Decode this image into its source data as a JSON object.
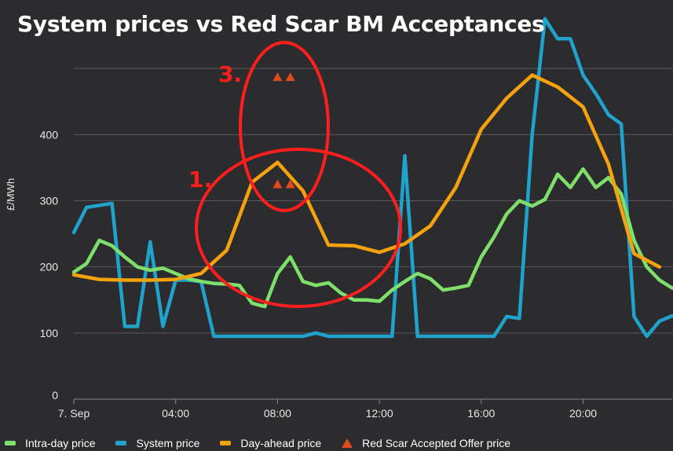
{
  "title": "System prices vs Red Scar BM Acceptances",
  "chart_data": {
    "type": "line",
    "title": "System prices vs Red Scar BM Acceptances",
    "ylabel": "£/MWh",
    "xlabel": "",
    "ylim": [
      0,
      500
    ],
    "y_ticks": [
      0,
      100,
      200,
      300,
      400
    ],
    "x_range": [
      0,
      23.5
    ],
    "x_ticks": [
      {
        "x": 0,
        "label": "7. Sep"
      },
      {
        "x": 4,
        "label": "04:00"
      },
      {
        "x": 8,
        "label": "08:00"
      },
      {
        "x": 12,
        "label": "12:00"
      },
      {
        "x": 16,
        "label": "16:00"
      },
      {
        "x": 20,
        "label": "20:00"
      }
    ],
    "series": [
      {
        "name": "Intra-day price",
        "color": "#7ee06a",
        "points": [
          [
            0,
            192
          ],
          [
            0.5,
            205
          ],
          [
            1,
            240
          ],
          [
            1.5,
            232
          ],
          [
            2,
            215
          ],
          [
            2.5,
            200
          ],
          [
            3,
            195
          ],
          [
            3.5,
            198
          ],
          [
            4,
            190
          ],
          [
            4.5,
            182
          ],
          [
            5,
            178
          ],
          [
            5.5,
            175
          ],
          [
            6,
            174
          ],
          [
            6.5,
            172
          ],
          [
            7,
            145
          ],
          [
            7.5,
            140
          ],
          [
            8,
            190
          ],
          [
            8.5,
            215
          ],
          [
            9,
            178
          ],
          [
            9.5,
            172
          ],
          [
            10,
            176
          ],
          [
            10.5,
            160
          ],
          [
            11,
            150
          ],
          [
            11.5,
            150
          ],
          [
            12,
            148
          ],
          [
            12.5,
            165
          ],
          [
            13,
            178
          ],
          [
            13.5,
            190
          ],
          [
            14,
            182
          ],
          [
            14.5,
            165
          ],
          [
            15,
            168
          ],
          [
            15.5,
            172
          ],
          [
            16,
            215
          ],
          [
            16.5,
            245
          ],
          [
            17,
            280
          ],
          [
            17.5,
            300
          ],
          [
            18,
            292
          ],
          [
            18.5,
            302
          ],
          [
            19,
            340
          ],
          [
            19.5,
            320
          ],
          [
            20,
            348
          ],
          [
            20.5,
            320
          ],
          [
            21,
            335
          ],
          [
            21.5,
            310
          ],
          [
            22,
            240
          ],
          [
            22.5,
            200
          ],
          [
            23,
            180
          ],
          [
            23.5,
            168
          ]
        ]
      },
      {
        "name": "System price",
        "color": "#1fa3cc",
        "points": [
          [
            0,
            252
          ],
          [
            0.5,
            290
          ],
          [
            1,
            293
          ],
          [
            1.5,
            296
          ],
          [
            2,
            110
          ],
          [
            2.5,
            110
          ],
          [
            3,
            238
          ],
          [
            3.5,
            110
          ],
          [
            4,
            180
          ],
          [
            4.5,
            180
          ],
          [
            5,
            178
          ],
          [
            5.5,
            95
          ],
          [
            6,
            95
          ],
          [
            6.5,
            95
          ],
          [
            7,
            95
          ],
          [
            7.5,
            95
          ],
          [
            8,
            95
          ],
          [
            8.5,
            95
          ],
          [
            9,
            95
          ],
          [
            9.5,
            100
          ],
          [
            10,
            95
          ],
          [
            10.5,
            95
          ],
          [
            11,
            95
          ],
          [
            11.5,
            95
          ],
          [
            12,
            95
          ],
          [
            12.5,
            95
          ],
          [
            13,
            368
          ],
          [
            13.5,
            95
          ],
          [
            14,
            95
          ],
          [
            14.5,
            95
          ],
          [
            15,
            95
          ],
          [
            15.5,
            95
          ],
          [
            16,
            95
          ],
          [
            16.5,
            95
          ],
          [
            17,
            125
          ],
          [
            17.5,
            122
          ],
          [
            18,
            400
          ],
          [
            18.5,
            575
          ],
          [
            19,
            545
          ],
          [
            19.5,
            545
          ],
          [
            20,
            490
          ],
          [
            20.5,
            462
          ],
          [
            21,
            430
          ],
          [
            21.5,
            416
          ],
          [
            22,
            125
          ],
          [
            22.5,
            95
          ],
          [
            23,
            118
          ],
          [
            23.5,
            126
          ]
        ]
      },
      {
        "name": "Day-ahead price",
        "color": "#f5a20e",
        "points": [
          [
            0,
            188
          ],
          [
            1,
            181
          ],
          [
            2,
            180
          ],
          [
            3,
            180
          ],
          [
            4,
            181
          ],
          [
            5,
            190
          ],
          [
            6,
            225
          ],
          [
            7,
            328
          ],
          [
            8,
            358
          ],
          [
            9,
            315
          ],
          [
            10,
            233
          ],
          [
            11,
            232
          ],
          [
            12,
            222
          ],
          [
            13,
            235
          ],
          [
            14,
            262
          ],
          [
            15,
            320
          ],
          [
            16,
            408
          ],
          [
            17,
            455
          ],
          [
            18,
            490
          ],
          [
            19,
            472
          ],
          [
            20,
            442
          ],
          [
            21,
            355
          ],
          [
            22,
            220
          ],
          [
            23,
            200
          ]
        ]
      }
    ],
    "scatter": {
      "name": "Red Scar Accepted Offer price",
      "color": "#e04a1c",
      "points": [
        [
          8,
          325
        ],
        [
          8.5,
          325
        ],
        [
          8,
          487
        ],
        [
          8.5,
          487
        ]
      ]
    }
  },
  "annotations": [
    {
      "label": "1.",
      "x": 7.3,
      "y": 240
    },
    {
      "label": "3.",
      "x": 6.3,
      "y": 480
    }
  ],
  "legend": [
    {
      "label": "Intra-day price",
      "color": "#7ee06a",
      "shape": "line"
    },
    {
      "label": "System price",
      "color": "#1fa3cc",
      "shape": "line"
    },
    {
      "label": "Day-ahead price",
      "color": "#f5a20e",
      "shape": "line"
    },
    {
      "label": "Red Scar Accepted Offer price",
      "color": "#e04a1c",
      "shape": "triangle"
    }
  ]
}
